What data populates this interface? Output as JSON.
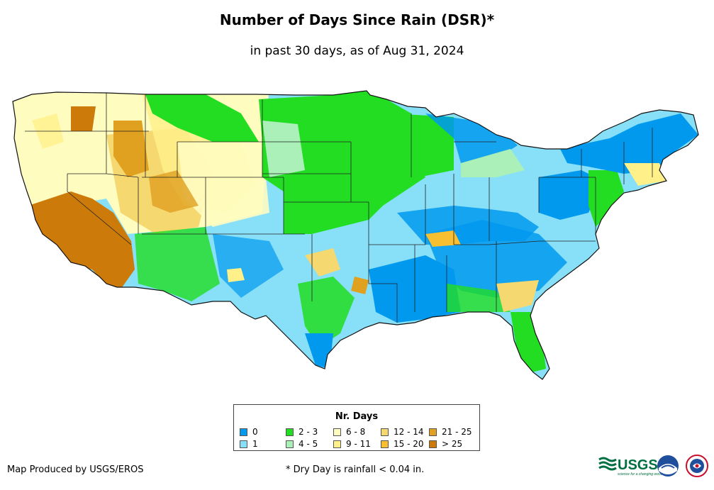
{
  "header": {
    "title": "Number of Days Since Rain (DSR)*",
    "subtitle": "in past 30 days, as of Aug 31, 2024"
  },
  "legend": {
    "title": "Nr. Days",
    "items": [
      {
        "label": "0",
        "color": "#0099ee"
      },
      {
        "label": "1",
        "color": "#88e0f8"
      },
      {
        "label": "2 - 3",
        "color": "#22dd22"
      },
      {
        "label": "4 - 5",
        "color": "#aaf0b8"
      },
      {
        "label": "6 - 8",
        "color": "#fffcc0"
      },
      {
        "label": "9 - 11",
        "color": "#fff08a"
      },
      {
        "label": "12 - 14",
        "color": "#f5d870"
      },
      {
        "label": "15 - 20",
        "color": "#f8c030"
      },
      {
        "label": "21 - 25",
        "color": "#e0a020"
      },
      {
        "label": "> 25",
        "color": "#cc7a0a"
      }
    ]
  },
  "footer": {
    "credit": "Map Produced by USGS/EROS",
    "footnote": "* Dry Day is rainfall < 0.04 in.",
    "logos": {
      "usgs": "USGS",
      "usgs_tagline": "science for a changing world"
    }
  },
  "map": {
    "region": "Contiguous United States",
    "icons": [
      "usgs-logo-icon",
      "noaa-logo-icon",
      "nws-logo-icon"
    ]
  }
}
